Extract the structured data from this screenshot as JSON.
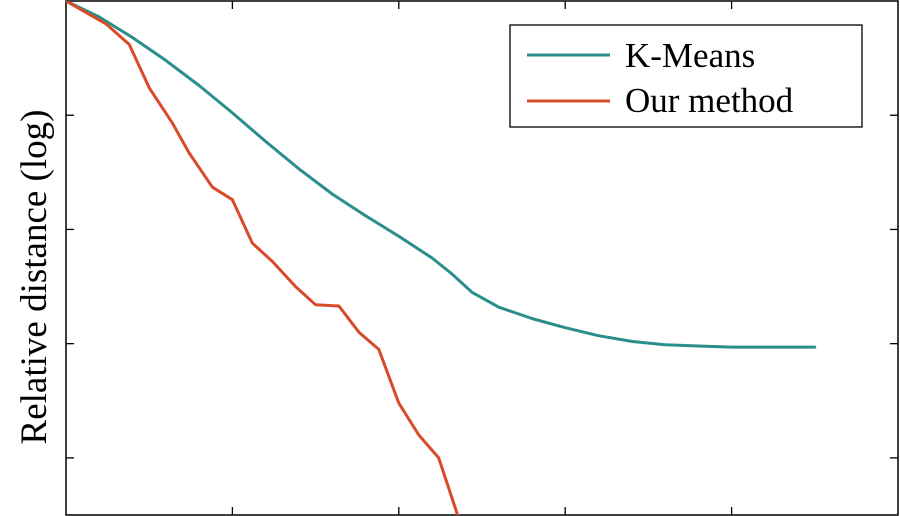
{
  "chart_data": {
    "type": "line",
    "title": "",
    "xlabel": "",
    "ylabel": "Relative distance (log)",
    "xlim": [
      0,
      25
    ],
    "ylim": [
      -4.5,
      0
    ],
    "x_tick_values": [
      0,
      5,
      10,
      15,
      20,
      25
    ],
    "y_tick_values": [
      -4,
      -3,
      -2,
      -1,
      0
    ],
    "tick_labels_shown": false,
    "grid": false,
    "legend_position": "top-right",
    "series": [
      {
        "name": "K-Means",
        "color": "#2a8f8b",
        "x": [
          0,
          1,
          2,
          3,
          4,
          5,
          6,
          7,
          8,
          9,
          10,
          11,
          11.6,
          12.2,
          13,
          14,
          15,
          16,
          17,
          18,
          19,
          20,
          21,
          22.5
        ],
        "y": [
          0,
          -0.14,
          -0.32,
          -0.52,
          -0.74,
          -0.98,
          -1.23,
          -1.47,
          -1.69,
          -1.88,
          -2.06,
          -2.25,
          -2.39,
          -2.55,
          -2.68,
          -2.78,
          -2.86,
          -2.93,
          -2.98,
          -3.01,
          -3.02,
          -3.03,
          -3.03,
          -3.03
        ]
      },
      {
        "name": "Our method",
        "color": "#d84b2a",
        "x": [
          0,
          1.2,
          1.9,
          2.5,
          3.2,
          3.7,
          4.4,
          5.0,
          5.6,
          6.2,
          6.9,
          7.5,
          8.2,
          8.8,
          9.4,
          10.0,
          10.6,
          11.2,
          11.8
        ],
        "y": [
          0,
          -0.2,
          -0.38,
          -0.76,
          -1.07,
          -1.33,
          -1.63,
          -1.74,
          -2.12,
          -2.28,
          -2.5,
          -2.66,
          -2.67,
          -2.9,
          -3.05,
          -3.52,
          -3.8,
          -4.0,
          -4.53
        ]
      }
    ]
  }
}
